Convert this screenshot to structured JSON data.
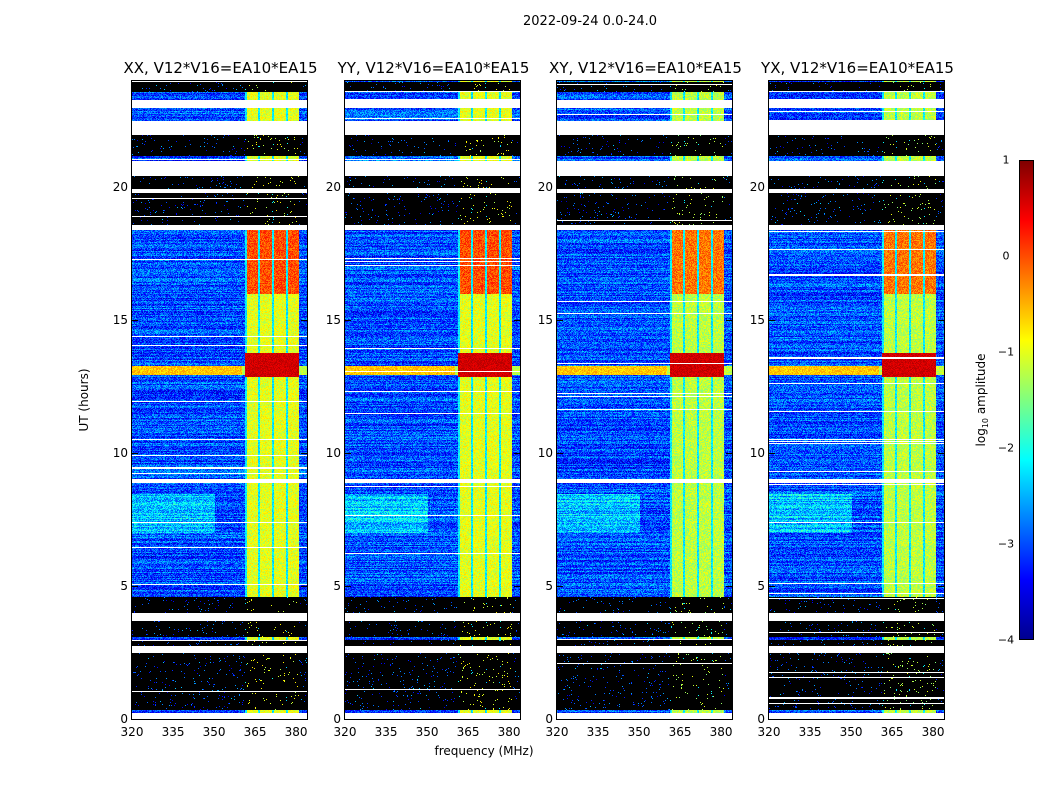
{
  "chart_data": {
    "type": "heatmap",
    "title": "2022-09-24 0.0-24.0",
    "xlabel": "frequency (MHz)",
    "ylabel": "UT (hours)",
    "xlim": [
      320,
      384
    ],
    "ylim": [
      0,
      24
    ],
    "xticks": [
      "320",
      "335",
      "350",
      "365",
      "380"
    ],
    "yticks": [
      "0",
      "5",
      "10",
      "15",
      "20"
    ],
    "panels": [
      {
        "title": "XX, V12*V16=EA10*EA15"
      },
      {
        "title": "YY, V12*V16=EA10*EA15"
      },
      {
        "title": "XY, V12*V16=EA10*EA15"
      },
      {
        "title": "YX, V12*V16=EA10*EA15"
      }
    ],
    "colorbar": {
      "label_main": "log",
      "label_sub": "10",
      "label_tail": " amplitude",
      "clim": [
        -4,
        1
      ],
      "ticks": [
        "1",
        "0",
        "−1",
        "−2",
        "−3",
        "−4"
      ],
      "colormap": "jet"
    },
    "flagged_white_hours": [
      [
        0,
        0.25
      ],
      [
        2.5,
        2.75
      ],
      [
        3.7,
        4.0
      ],
      [
        8.9,
        9.05
      ],
      [
        18.4,
        18.6
      ],
      [
        19.8,
        19.95
      ],
      [
        20.45,
        21.0
      ],
      [
        22.0,
        22.5
      ],
      [
        23.0,
        23.3
      ]
    ],
    "no_data_black_hours": [
      [
        0.35,
        2.5
      ],
      [
        2.75,
        3.0
      ],
      [
        3.1,
        3.7
      ],
      [
        4.0,
        4.6
      ],
      [
        18.6,
        19.0
      ],
      [
        19.0,
        19.8
      ],
      [
        19.95,
        20.45
      ],
      [
        21.2,
        22.0
      ],
      [
        23.6,
        24.0
      ]
    ],
    "rfi_band_mhz": [
      361,
      381
    ],
    "background_log_amplitude": -3.0,
    "rfi_log_amplitude_day": 0.0,
    "rfi_log_amplitude_night": -1.0,
    "strong_event_hours": [
      12.9,
      13.8
    ],
    "strong_event_log_amplitude": 0.6
  }
}
